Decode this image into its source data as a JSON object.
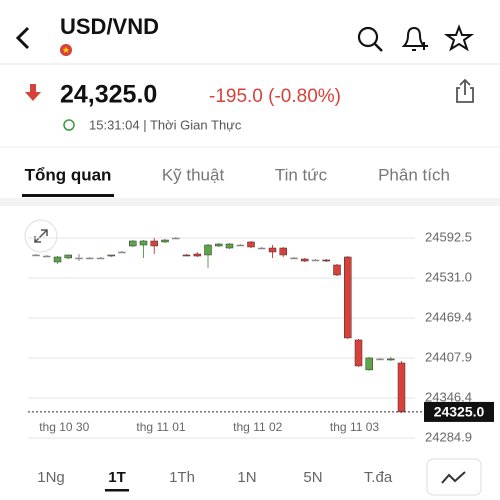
{
  "header": {
    "title": "USD/VND"
  },
  "quote": {
    "price": "24,325.0",
    "change": "-195.0 (-0.80%)",
    "time": "15:31:04 | Thời Gian Thực"
  },
  "tabs": [
    "Tổng quan",
    "Kỹ thuật",
    "Tin tức",
    "Phân tích"
  ],
  "ranges": [
    "1Ng",
    "1T",
    "1Th",
    "1N",
    "5N",
    "T.đa"
  ],
  "chart_data": {
    "type": "candlestick",
    "categories": [
      null,
      null,
      null,
      "thg 10 30",
      null,
      null,
      null,
      null,
      null,
      null,
      null,
      null,
      "thg 11 01",
      null,
      null,
      null,
      null,
      null,
      null,
      null,
      null,
      "thg 11 02",
      null,
      null,
      null,
      null,
      null,
      null,
      null,
      null,
      "thg 11 03",
      null,
      null,
      null,
      null
    ],
    "open": [
      24566.4,
      24564.8,
      24555.6,
      24561.8,
      24561.8,
      24561.8,
      24561.8,
      24564.8,
      24571.0,
      24580.2,
      24581.7,
      24587.9,
      24586.4,
      24592.5,
      24566.4,
      24567.9,
      24566.4,
      24580.2,
      24577.1,
      24581.7,
      24586.4,
      24577.1,
      24577.1,
      24577.1,
      24561.8,
      24560.2,
      24558.7,
      24558.7,
      24551.0,
      24563.3,
      24435.7,
      24389.7,
      24406.5,
      24404.9,
      24400.3
    ],
    "high": [
      24567.9,
      24566.4,
      24564.8,
      24566.4,
      24567.9,
      24563.3,
      24563.3,
      24566.4,
      24572.5,
      24589.4,
      24589.4,
      24592.5,
      24590.9,
      24594.0,
      24567.9,
      24571.0,
      24583.3,
      24584.8,
      24584.8,
      24583.3,
      24587.9,
      24578.7,
      24581.7,
      24578.7,
      24563.3,
      24561.8,
      24560.2,
      24560.2,
      24552.5,
      24564.8,
      24437.2,
      24409.6,
      24408.0,
      24409.6,
      24403.4
    ],
    "low": [
      24564.8,
      24563.3,
      24552.5,
      24560.2,
      24557.1,
      24560.2,
      24560.2,
      24563.3,
      24569.4,
      24578.7,
      24561.8,
      24567.9,
      24584.8,
      24590.9,
      24564.8,
      24563.3,
      24546.4,
      24578.7,
      24575.6,
      24580.2,
      24577.1,
      24575.6,
      24561.8,
      24563.3,
      24560.2,
      24555.6,
      24557.1,
      24555.6,
      24534.1,
      24437.2,
      24394.2,
      24388.2,
      24404.9,
      24403.4,
      24323.6
    ],
    "close": [
      24566.4,
      24564.8,
      24563.3,
      24566.4,
      24561.8,
      24561.8,
      24561.8,
      24566.4,
      24571.0,
      24587.9,
      24587.9,
      24580.2,
      24589.4,
      24592.5,
      24564.8,
      24564.8,
      24581.7,
      24583.3,
      24583.3,
      24581.7,
      24578.7,
      24577.1,
      24571.0,
      24566.4,
      24561.8,
      24557.1,
      24558.7,
      24557.1,
      24535.6,
      24438.8,
      24395.7,
      24408.0,
      24406.5,
      24406.5,
      24325.0
    ],
    "up_color": "#5da547",
    "down_color": "#d8413a",
    "ylim": [
      24284.9,
      24612.5
    ],
    "yticks": [
      24592.5,
      {
        "value": 24531.0,
        "label": "24531.0"
      },
      24469.4,
      24407.9,
      24346.4,
      24284.9
    ],
    "grid": true,
    "last_price": {
      "value": 24325.0,
      "label": "24325.0"
    }
  }
}
